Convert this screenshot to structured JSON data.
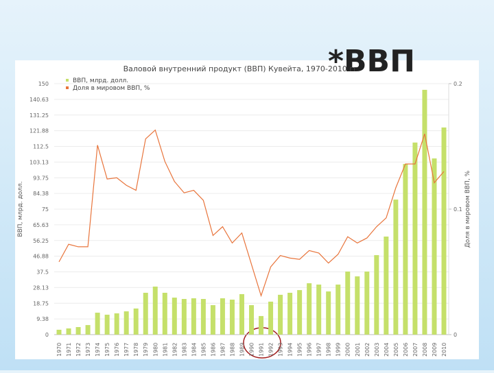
{
  "heading": "*ВВП",
  "chart_data": {
    "type": "bar-line",
    "title": "Валовой внутренний продукт (ВВП) Кувейта, 1970-2010 гг.",
    "y_label": "ВВП, млрд. долл.",
    "y2_label": "Доля в мировом ВВП, %",
    "categories": [
      "1970",
      "1971",
      "1972",
      "1973",
      "1974",
      "1975",
      "1976",
      "1977",
      "1978",
      "1979",
      "1980",
      "1981",
      "1982",
      "1983",
      "1984",
      "1985",
      "1986",
      "1987",
      "1988",
      "1989",
      "1990",
      "1991",
      "1992",
      "1993",
      "1994",
      "1995",
      "1996",
      "1997",
      "1998",
      "1999",
      "2000",
      "2001",
      "2002",
      "2003",
      "2004",
      "2005",
      "2006",
      "2007",
      "2008",
      "2009",
      "2010"
    ],
    "series": [
      {
        "name": "ВВП, млрд. долл.",
        "kind": "bar",
        "color": "#c5e06a",
        "values": [
          2.9,
          3.7,
          4.5,
          5.7,
          13.1,
          11.9,
          12.7,
          13.9,
          15.6,
          25,
          28.7,
          25,
          22.1,
          21.3,
          21.7,
          21.3,
          17.6,
          21.7,
          20.9,
          24.2,
          17.6,
          11.1,
          19.7,
          23.8,
          25,
          26.6,
          30.7,
          29.9,
          25.8,
          29.9,
          37.7,
          34.8,
          37.7,
          47.5,
          58.6,
          80.7,
          102,
          114.8,
          146.3,
          105.3,
          123.8
        ]
      },
      {
        "name": "Доля в мировом ВВП, %",
        "kind": "line",
        "axis": "y2",
        "color": "#e8743b",
        "values": [
          0.058,
          0.072,
          0.07,
          0.07,
          0.151,
          0.124,
          0.125,
          0.119,
          0.115,
          0.156,
          0.163,
          0.138,
          0.122,
          0.113,
          0.115,
          0.107,
          0.079,
          0.086,
          0.073,
          0.081,
          0.056,
          0.031,
          0.054,
          0.063,
          0.061,
          0.06,
          0.067,
          0.065,
          0.057,
          0.064,
          0.078,
          0.073,
          0.077,
          0.086,
          0.093,
          0.117,
          0.136,
          0.136,
          0.16,
          0.121,
          0.13
        ]
      }
    ],
    "ylim": [
      0,
      150
    ],
    "yticks": [
      0,
      {
        "value": 9.375,
        "label": "9.38"
      },
      {
        "value": 18.75,
        "label": "18.75"
      },
      {
        "value": 28.125,
        "label": "28.13"
      },
      {
        "value": 37.5,
        "label": "37.5"
      },
      {
        "value": 46.875,
        "label": "46.88"
      },
      {
        "value": 56.25,
        "label": "56.25"
      },
      {
        "value": 65.625,
        "label": "65.63"
      },
      75,
      {
        "value": 84.375,
        "label": "84.38"
      },
      {
        "value": 93.75,
        "label": "93.75"
      },
      {
        "value": 103.125,
        "label": "103.13"
      },
      112.5,
      {
        "value": 121.875,
        "label": "121.88"
      },
      {
        "value": 131.25,
        "label": "131.25"
      },
      {
        "value": 140.625,
        "label": "140.63"
      },
      150
    ],
    "y2lim": [
      0,
      0.2
    ],
    "y2ticks": [
      0,
      0.1,
      0.2
    ],
    "grid": true,
    "legend": "top-left"
  }
}
